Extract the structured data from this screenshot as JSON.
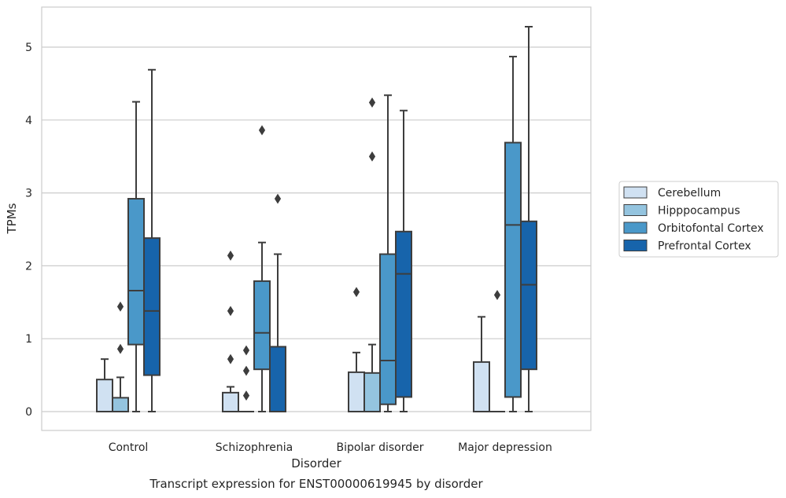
{
  "chart_data": {
    "type": "box",
    "title": "",
    "caption": "Transcript expression for ENST00000619945 by disorder",
    "xlabel": "Disorder",
    "ylabel": "TPMs",
    "ylim": [
      -0.25,
      5.55
    ],
    "yticks": [
      0,
      1,
      2,
      3,
      4,
      5
    ],
    "grid": "horizontal",
    "legend_position": "right",
    "categories": [
      "Control",
      "Schizophrenia",
      "Bipolar disorder",
      "Major depression"
    ],
    "series": [
      {
        "name": "Cerebellum",
        "color": "#d0e1f2",
        "boxes": [
          {
            "whislo": 0,
            "q1": 0,
            "med": 0,
            "q3": 0.44,
            "whishi": 0.72,
            "fliers": []
          },
          {
            "whislo": 0,
            "q1": 0,
            "med": 0,
            "q3": 0.26,
            "whishi": 0.34,
            "fliers": [
              2.14,
              1.38,
              0.72
            ]
          },
          {
            "whislo": 0,
            "q1": 0,
            "med": 0,
            "q3": 0.54,
            "whishi": 0.81,
            "fliers": [
              1.64
            ]
          },
          {
            "whislo": 0,
            "q1": 0,
            "med": 0,
            "q3": 0.68,
            "whishi": 1.3,
            "fliers": []
          }
        ]
      },
      {
        "name": "Hipppocampus",
        "color": "#94c4df",
        "boxes": [
          {
            "whislo": 0,
            "q1": 0,
            "med": 0,
            "q3": 0.19,
            "whishi": 0.47,
            "fliers": [
              1.44,
              0.86
            ]
          },
          {
            "whislo": 0,
            "q1": 0,
            "med": 0,
            "q3": 0,
            "whishi": 0,
            "fliers": [
              0.84,
              0.56,
              0.22
            ]
          },
          {
            "whislo": 0,
            "q1": 0,
            "med": 0,
            "q3": 0.53,
            "whishi": 0.92,
            "fliers": [
              4.24,
              3.5
            ]
          },
          {
            "whislo": 0,
            "q1": 0,
            "med": 0,
            "q3": 0,
            "whishi": 0,
            "fliers": [
              1.6
            ]
          }
        ]
      },
      {
        "name": "Orbitofontal Cortex",
        "color": "#4a98c9",
        "boxes": [
          {
            "whislo": 0,
            "q1": 0.92,
            "med": 1.66,
            "q3": 2.92,
            "whishi": 4.25,
            "fliers": []
          },
          {
            "whislo": 0,
            "q1": 0.58,
            "med": 1.08,
            "q3": 1.79,
            "whishi": 2.32,
            "fliers": [
              3.86
            ]
          },
          {
            "whislo": 0,
            "q1": 0.1,
            "med": 0.7,
            "q3": 2.16,
            "whishi": 4.34,
            "fliers": []
          },
          {
            "whislo": 0,
            "q1": 0.2,
            "med": 2.56,
            "q3": 3.69,
            "whishi": 4.87,
            "fliers": []
          }
        ]
      },
      {
        "name": "Prefrontal Cortex",
        "color": "#1764ab",
        "boxes": [
          {
            "whislo": 0,
            "q1": 0.5,
            "med": 1.38,
            "q3": 2.38,
            "whishi": 4.69,
            "fliers": []
          },
          {
            "whislo": 0,
            "q1": 0,
            "med": 0,
            "q3": 0.89,
            "whishi": 2.16,
            "fliers": [
              2.92
            ]
          },
          {
            "whislo": 0,
            "q1": 0.2,
            "med": 1.89,
            "q3": 2.47,
            "whishi": 4.13,
            "fliers": []
          },
          {
            "whislo": 0,
            "q1": 0.58,
            "med": 1.74,
            "q3": 2.61,
            "whishi": 5.28,
            "fliers": []
          }
        ]
      }
    ]
  }
}
